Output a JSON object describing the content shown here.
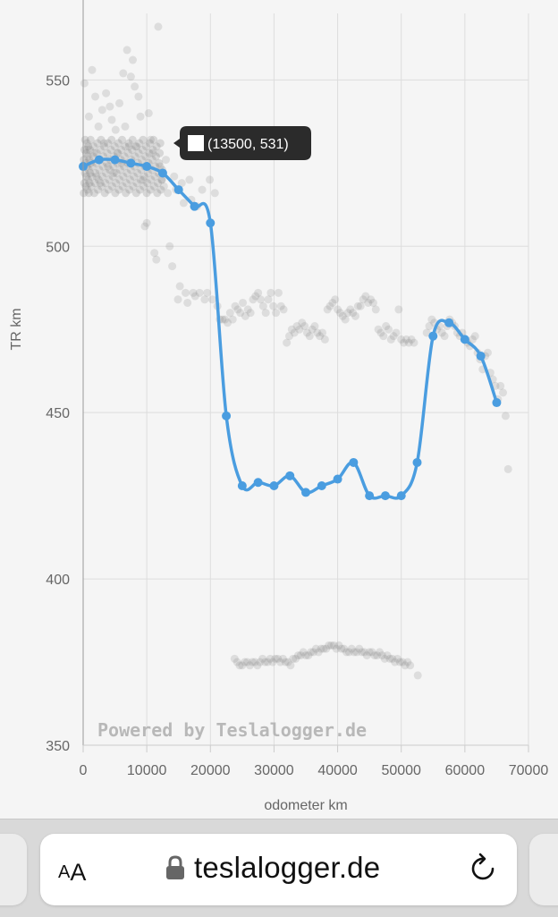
{
  "chart_data": {
    "type": "scatter",
    "xlabel": "odometer km",
    "ylabel": "TR km",
    "xlim": [
      0,
      70000
    ],
    "ylim": [
      350,
      570
    ],
    "x_ticks": [
      "0",
      "10000",
      "20000",
      "30000",
      "40000",
      "50000",
      "60000",
      "70000"
    ],
    "y_ticks": [
      "350",
      "400",
      "450",
      "500",
      "550"
    ],
    "grid": true,
    "watermark": "Powered by Teslalogger.de",
    "tooltip": "(13500, 531)",
    "colors": {
      "trend": "#4a9de0",
      "scatter": "#8a8a8a",
      "grid": "#dddddd",
      "tooltip_bg": "#2b2b2b"
    },
    "series": [
      {
        "values": [
          [
            0,
            524
          ],
          [
            2500,
            526
          ],
          [
            5000,
            526
          ],
          [
            7500,
            525
          ],
          [
            10000,
            524
          ],
          [
            12500,
            522
          ],
          [
            15000,
            517
          ],
          [
            17500,
            512
          ],
          [
            20000,
            507
          ],
          [
            22500,
            449
          ],
          [
            25000,
            428
          ],
          [
            27500,
            429
          ],
          [
            30000,
            428
          ],
          [
            32500,
            431
          ],
          [
            35000,
            426
          ],
          [
            37500,
            428
          ],
          [
            40000,
            430
          ],
          [
            42500,
            435
          ],
          [
            45000,
            425
          ],
          [
            47500,
            425
          ],
          [
            50000,
            425
          ],
          [
            52500,
            435
          ],
          [
            55000,
            473
          ],
          [
            57500,
            477
          ],
          [
            60000,
            472
          ],
          [
            62500,
            467
          ],
          [
            65000,
            453
          ]
        ]
      },
      {
        "values": [
          [
            200,
            549
          ],
          [
            600,
            529
          ],
          [
            900,
            539
          ],
          [
            1400,
            553
          ],
          [
            1700,
            528
          ],
          [
            1900,
            545
          ],
          [
            2100,
            521
          ],
          [
            2400,
            536
          ],
          [
            2700,
            519
          ],
          [
            3000,
            541
          ],
          [
            3300,
            531
          ],
          [
            3600,
            546
          ],
          [
            3900,
            524
          ],
          [
            4200,
            542
          ],
          [
            4500,
            538
          ],
          [
            4800,
            522
          ],
          [
            5100,
            535
          ],
          [
            5400,
            528
          ],
          [
            5700,
            543
          ],
          [
            6000,
            525
          ],
          [
            6300,
            552
          ],
          [
            6600,
            536
          ],
          [
            6900,
            559
          ],
          [
            7200,
            530
          ],
          [
            7500,
            551
          ],
          [
            7800,
            556
          ],
          [
            8100,
            548
          ],
          [
            8400,
            530
          ],
          [
            8700,
            545
          ],
          [
            9000,
            539
          ],
          [
            9400,
            520
          ],
          [
            9700,
            506
          ],
          [
            10000,
            507
          ],
          [
            10300,
            540
          ],
          [
            10600,
            532
          ],
          [
            10900,
            528
          ],
          [
            11200,
            498
          ],
          [
            11500,
            496
          ],
          [
            11800,
            566
          ],
          [
            12100,
            524
          ],
          [
            12400,
            520
          ],
          [
            12700,
            518
          ],
          [
            13000,
            526
          ],
          [
            13300,
            516
          ],
          [
            13600,
            500
          ],
          [
            14000,
            494
          ],
          [
            14300,
            521
          ],
          [
            14600,
            517
          ],
          [
            14900,
            484
          ],
          [
            15200,
            488
          ],
          [
            15500,
            519
          ],
          [
            15800,
            513
          ],
          [
            16100,
            486
          ],
          [
            16400,
            483
          ],
          [
            16700,
            520
          ],
          [
            17000,
            514
          ],
          [
            17300,
            486
          ],
          [
            17600,
            485
          ],
          [
            17900,
            512
          ],
          [
            18300,
            486
          ],
          [
            18700,
            517
          ],
          [
            19100,
            484
          ],
          [
            19500,
            486
          ],
          [
            19900,
            520
          ],
          [
            20300,
            484
          ],
          [
            20700,
            516
          ],
          [
            21100,
            482
          ],
          [
            21500,
            478
          ],
          [
            21900,
            478
          ],
          [
            22300,
            478
          ],
          [
            22700,
            477
          ],
          [
            23100,
            480
          ],
          [
            23500,
            478
          ],
          [
            23900,
            482
          ],
          [
            24300,
            481
          ],
          [
            24700,
            480
          ],
          [
            25100,
            483
          ],
          [
            25500,
            479
          ],
          [
            25900,
            481
          ],
          [
            26300,
            480
          ],
          [
            26700,
            484
          ],
          [
            27100,
            485
          ],
          [
            27500,
            486
          ],
          [
            27900,
            484
          ],
          [
            28300,
            482
          ],
          [
            28700,
            480
          ],
          [
            29100,
            484
          ],
          [
            29500,
            486
          ],
          [
            29900,
            482
          ],
          [
            30300,
            480
          ],
          [
            30700,
            486
          ],
          [
            31100,
            482
          ],
          [
            31500,
            481
          ],
          [
            32000,
            471
          ],
          [
            32400,
            473
          ],
          [
            32800,
            475
          ],
          [
            33200,
            474
          ],
          [
            33600,
            476
          ],
          [
            34000,
            475
          ],
          [
            34400,
            477
          ],
          [
            34800,
            476
          ],
          [
            35200,
            474
          ],
          [
            35600,
            473
          ],
          [
            36000,
            475
          ],
          [
            36400,
            476
          ],
          [
            36800,
            474
          ],
          [
            37200,
            473
          ],
          [
            37600,
            474
          ],
          [
            38000,
            472
          ],
          [
            38400,
            481
          ],
          [
            38800,
            482
          ],
          [
            39200,
            483
          ],
          [
            39600,
            484
          ],
          [
            40000,
            481
          ],
          [
            40400,
            480
          ],
          [
            40800,
            479
          ],
          [
            41200,
            478
          ],
          [
            41600,
            480
          ],
          [
            42000,
            481
          ],
          [
            42400,
            480
          ],
          [
            42800,
            479
          ],
          [
            43200,
            482
          ],
          [
            43600,
            482
          ],
          [
            44000,
            484
          ],
          [
            44400,
            485
          ],
          [
            44800,
            483
          ],
          [
            45200,
            484
          ],
          [
            45600,
            483
          ],
          [
            46000,
            481
          ],
          [
            46400,
            475
          ],
          [
            46800,
            474
          ],
          [
            47200,
            473
          ],
          [
            47600,
            476
          ],
          [
            48000,
            475
          ],
          [
            48400,
            472
          ],
          [
            48800,
            473
          ],
          [
            49200,
            474
          ],
          [
            49600,
            481
          ],
          [
            50000,
            472
          ],
          [
            50400,
            471
          ],
          [
            50800,
            472
          ],
          [
            51200,
            471
          ],
          [
            51600,
            472
          ],
          [
            52000,
            471
          ],
          [
            54000,
            474
          ],
          [
            54400,
            476
          ],
          [
            54800,
            478
          ],
          [
            55200,
            477
          ],
          [
            55600,
            475
          ],
          [
            56000,
            476
          ],
          [
            56400,
            474
          ],
          [
            56800,
            473
          ],
          [
            57200,
            476
          ],
          [
            57600,
            478
          ],
          [
            58000,
            477
          ],
          [
            58400,
            476
          ],
          [
            58800,
            474
          ],
          [
            59200,
            473
          ],
          [
            59600,
            474
          ],
          [
            60000,
            472
          ],
          [
            60400,
            471
          ],
          [
            60800,
            470
          ],
          [
            61200,
            472
          ],
          [
            61600,
            473
          ],
          [
            62000,
            468
          ],
          [
            62400,
            466
          ],
          [
            62800,
            463
          ],
          [
            63200,
            467
          ],
          [
            63600,
            468
          ],
          [
            64000,
            462
          ],
          [
            64400,
            460
          ],
          [
            64800,
            458
          ],
          [
            65200,
            454
          ],
          [
            65600,
            458
          ],
          [
            66000,
            456
          ],
          [
            66400,
            449
          ],
          [
            66800,
            433
          ],
          [
            23800,
            376
          ],
          [
            24200,
            375
          ],
          [
            24600,
            374
          ],
          [
            25000,
            374
          ],
          [
            25400,
            375
          ],
          [
            25800,
            375
          ],
          [
            26200,
            374
          ],
          [
            26600,
            375
          ],
          [
            27000,
            375
          ],
          [
            27400,
            374
          ],
          [
            27800,
            375
          ],
          [
            28200,
            376
          ],
          [
            28600,
            375
          ],
          [
            29000,
            375
          ],
          [
            29400,
            376
          ],
          [
            29800,
            375
          ],
          [
            30200,
            376
          ],
          [
            30600,
            376
          ],
          [
            31000,
            375
          ],
          [
            31400,
            376
          ],
          [
            31800,
            375
          ],
          [
            32200,
            375
          ],
          [
            32600,
            374
          ],
          [
            33000,
            376
          ],
          [
            33400,
            376
          ],
          [
            33800,
            377
          ],
          [
            34200,
            377
          ],
          [
            34600,
            378
          ],
          [
            35000,
            377
          ],
          [
            35400,
            377
          ],
          [
            35800,
            378
          ],
          [
            36200,
            378
          ],
          [
            36600,
            379
          ],
          [
            37000,
            378
          ],
          [
            37400,
            379
          ],
          [
            37800,
            379
          ],
          [
            38200,
            379
          ],
          [
            38600,
            380
          ],
          [
            39000,
            380
          ],
          [
            39400,
            380
          ],
          [
            39800,
            379
          ],
          [
            40200,
            380
          ],
          [
            40600,
            379
          ],
          [
            41000,
            379
          ],
          [
            41400,
            378
          ],
          [
            41800,
            378
          ],
          [
            42200,
            379
          ],
          [
            42600,
            378
          ],
          [
            43000,
            378
          ],
          [
            43400,
            379
          ],
          [
            43800,
            378
          ],
          [
            44200,
            378
          ],
          [
            44600,
            377
          ],
          [
            45000,
            378
          ],
          [
            45400,
            378
          ],
          [
            45800,
            377
          ],
          [
            46200,
            377
          ],
          [
            46600,
            378
          ],
          [
            47000,
            377
          ],
          [
            47400,
            376
          ],
          [
            47800,
            377
          ],
          [
            48200,
            376
          ],
          [
            48600,
            376
          ],
          [
            49000,
            375
          ],
          [
            49400,
            376
          ],
          [
            49800,
            375
          ],
          [
            50200,
            375
          ],
          [
            50600,
            374
          ],
          [
            51000,
            375
          ],
          [
            51400,
            374
          ],
          [
            52600,
            371
          ]
        ]
      }
    ]
  },
  "browser": {
    "text_size_small": "A",
    "text_size_big": "A",
    "url": "teslalogger.de"
  }
}
